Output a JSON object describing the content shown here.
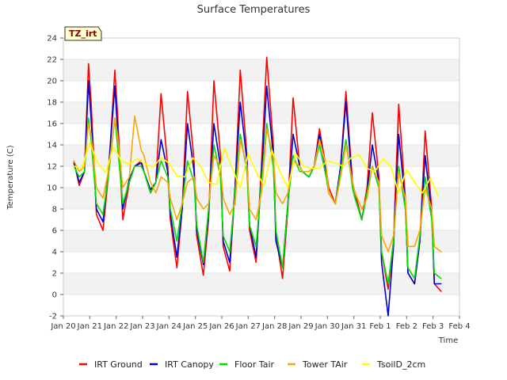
{
  "badge": {
    "label": "TZ_irt"
  },
  "chart_data": {
    "type": "line",
    "title": "Surface Temperatures",
    "xlabel": "Time",
    "ylabel": "Temperature (C)",
    "ylim": [
      -2,
      24
    ],
    "yticks": [
      -2,
      0,
      2,
      4,
      6,
      8,
      10,
      12,
      14,
      16,
      18,
      20,
      22,
      24
    ],
    "xlim": [
      0,
      15
    ],
    "xticks": [
      {
        "value": 0,
        "label": "Jan 20"
      },
      {
        "value": 1,
        "label": "Jan 21"
      },
      {
        "value": 2,
        "label": "Jan 22"
      },
      {
        "value": 3,
        "label": "Jan 23"
      },
      {
        "value": 4,
        "label": "Jan 24"
      },
      {
        "value": 5,
        "label": "Jan 25"
      },
      {
        "value": 6,
        "label": "Jan 26"
      },
      {
        "value": 7,
        "label": "Jan 27"
      },
      {
        "value": 8,
        "label": "Jan 28"
      },
      {
        "value": 9,
        "label": "Jan 29"
      },
      {
        "value": 10,
        "label": "Jan 30"
      },
      {
        "value": 11,
        "label": "Jan 31"
      },
      {
        "value": 12,
        "label": "Feb 1"
      },
      {
        "value": 13,
        "label": "Feb 2"
      },
      {
        "value": 14,
        "label": "Feb 3"
      },
      {
        "value": 15,
        "label": "Feb 4"
      }
    ],
    "grid": "horizontal bands",
    "legend_position": "bottom",
    "series": [
      {
        "name": "IRT Ground",
        "color": "#ff0000",
        "x": [
          0.4,
          0.6,
          0.8,
          0.95,
          1.05,
          1.25,
          1.5,
          1.7,
          1.95,
          2.05,
          2.25,
          2.5,
          2.7,
          2.95,
          3.05,
          3.3,
          3.5,
          3.7,
          3.95,
          4.05,
          4.3,
          4.5,
          4.7,
          4.95,
          5.05,
          5.3,
          5.5,
          5.7,
          5.95,
          6.05,
          6.3,
          6.5,
          6.7,
          6.95,
          7.05,
          7.3,
          7.5,
          7.7,
          7.95,
          8.05,
          8.3,
          8.5,
          8.7,
          8.95,
          9.05,
          9.3,
          9.5,
          9.7,
          9.95,
          10.05,
          10.3,
          10.5,
          10.7,
          10.95,
          11.05,
          11.3,
          11.5,
          11.7,
          11.95,
          12.05,
          12.3,
          12.5,
          12.7,
          12.95,
          13.05,
          13.3,
          13.5,
          13.7,
          13.95,
          14.05,
          14.3
        ],
        "y": [
          12.5,
          10.2,
          11.5,
          21.6,
          18.0,
          7.5,
          6.0,
          11.0,
          21.0,
          17.0,
          7.0,
          10.5,
          12.0,
          12.5,
          11.5,
          9.5,
          10.5,
          18.8,
          12.0,
          7.0,
          2.5,
          8.0,
          19.0,
          12.5,
          5.5,
          1.8,
          7.0,
          20.0,
          13.0,
          4.5,
          2.2,
          10.0,
          21.0,
          13.0,
          6.0,
          3.0,
          12.0,
          22.2,
          14.0,
          5.5,
          1.5,
          8.0,
          18.4,
          12.0,
          11.5,
          11.0,
          12.0,
          15.5,
          11.8,
          10.0,
          8.5,
          12.0,
          19.0,
          10.5,
          9.5,
          7.0,
          10.0,
          17.0,
          11.0,
          4.0,
          0.5,
          5.0,
          17.8,
          9.0,
          2.0,
          1.0,
          5.0,
          15.3,
          8.0,
          1.0,
          0.3
        ]
      },
      {
        "name": "IRT Canopy",
        "color": "#0000cc",
        "x": [
          0.4,
          0.6,
          0.8,
          0.95,
          1.05,
          1.25,
          1.5,
          1.7,
          1.95,
          2.05,
          2.25,
          2.5,
          2.7,
          2.95,
          3.05,
          3.3,
          3.5,
          3.7,
          3.95,
          4.05,
          4.3,
          4.5,
          4.7,
          4.95,
          5.05,
          5.3,
          5.5,
          5.7,
          5.95,
          6.05,
          6.3,
          6.5,
          6.7,
          6.95,
          7.05,
          7.3,
          7.5,
          7.7,
          7.95,
          8.05,
          8.3,
          8.5,
          8.7,
          8.95,
          9.05,
          9.3,
          9.5,
          9.7,
          9.95,
          10.05,
          10.3,
          10.5,
          10.7,
          10.95,
          11.05,
          11.3,
          11.5,
          11.7,
          11.95,
          12.05,
          12.3,
          12.5,
          12.7,
          12.95,
          13.05,
          13.3,
          13.5,
          13.7,
          13.95,
          14.05,
          14.3
        ],
        "y": [
          12.3,
          10.5,
          11.5,
          20.0,
          16.5,
          8.0,
          6.8,
          11.5,
          19.5,
          15.5,
          8.0,
          10.8,
          12.0,
          12.3,
          11.5,
          9.8,
          10.5,
          14.5,
          11.5,
          7.5,
          3.5,
          8.0,
          16.0,
          11.5,
          6.0,
          2.8,
          7.5,
          16.0,
          12.0,
          5.0,
          3.0,
          10.0,
          18.0,
          12.5,
          6.5,
          3.5,
          11.0,
          19.5,
          13.0,
          5.0,
          2.5,
          8.5,
          15.0,
          12.0,
          11.5,
          11.0,
          12.0,
          15.0,
          11.5,
          9.5,
          8.5,
          12.0,
          18.0,
          10.0,
          9.0,
          7.0,
          9.5,
          14.0,
          10.5,
          3.0,
          -2.0,
          4.5,
          15.0,
          8.5,
          2.0,
          1.0,
          5.0,
          13.0,
          7.5,
          1.0,
          1.0
        ]
      },
      {
        "name": "Floor Tair",
        "color": "#00dd00",
        "x": [
          0.4,
          0.6,
          0.8,
          0.95,
          1.05,
          1.25,
          1.5,
          1.7,
          1.95,
          2.05,
          2.25,
          2.5,
          2.7,
          2.95,
          3.05,
          3.3,
          3.5,
          3.7,
          3.95,
          4.05,
          4.3,
          4.5,
          4.7,
          4.95,
          5.05,
          5.3,
          5.5,
          5.7,
          5.95,
          6.05,
          6.3,
          6.5,
          6.7,
          6.95,
          7.05,
          7.3,
          7.5,
          7.7,
          7.95,
          8.05,
          8.3,
          8.5,
          8.7,
          8.95,
          9.05,
          9.3,
          9.5,
          9.7,
          9.95,
          10.05,
          10.3,
          10.5,
          10.7,
          10.95,
          11.05,
          11.3,
          11.5,
          11.7,
          11.95,
          12.05,
          12.3,
          12.5,
          12.7,
          12.95,
          13.05,
          13.3,
          13.5,
          13.7,
          13.95,
          14.05,
          14.3
        ],
        "y": [
          12.0,
          11.0,
          11.5,
          16.5,
          14.5,
          8.5,
          7.5,
          11.0,
          16.5,
          14.0,
          8.5,
          10.5,
          12.0,
          12.0,
          11.5,
          9.5,
          10.5,
          12.5,
          11.0,
          8.0,
          5.0,
          8.5,
          12.5,
          10.5,
          6.5,
          3.0,
          8.0,
          14.0,
          11.0,
          5.5,
          4.0,
          9.5,
          15.0,
          11.5,
          6.5,
          4.5,
          10.5,
          16.0,
          12.0,
          6.0,
          2.5,
          8.5,
          13.0,
          11.5,
          11.5,
          11.0,
          12.0,
          14.0,
          11.0,
          9.5,
          8.5,
          11.5,
          14.5,
          10.0,
          9.0,
          7.0,
          9.5,
          12.0,
          10.0,
          4.0,
          1.0,
          5.0,
          12.0,
          8.0,
          2.5,
          1.5,
          5.5,
          11.0,
          7.0,
          2.0,
          1.5
        ]
      },
      {
        "name": "Tower TAir",
        "color": "#ffa500",
        "x": [
          0.4,
          0.6,
          0.8,
          0.95,
          1.05,
          1.25,
          1.5,
          1.7,
          1.95,
          2.05,
          2.25,
          2.5,
          2.7,
          2.95,
          3.05,
          3.3,
          3.5,
          3.7,
          3.95,
          4.05,
          4.3,
          4.5,
          4.7,
          4.95,
          5.05,
          5.3,
          5.5,
          5.7,
          5.95,
          6.05,
          6.3,
          6.5,
          6.7,
          6.95,
          7.05,
          7.3,
          7.5,
          7.7,
          7.95,
          8.05,
          8.3,
          8.5,
          8.7,
          8.95,
          9.05,
          9.3,
          9.5,
          9.7,
          9.95,
          10.05,
          10.3,
          10.5,
          10.7,
          10.95,
          11.05,
          11.3,
          11.5,
          11.7,
          11.95,
          12.05,
          12.3,
          12.5,
          12.7,
          12.95,
          13.05,
          13.3,
          13.5,
          13.7,
          13.95,
          14.05,
          14.3
        ],
        "y": [
          12.5,
          11.5,
          12.0,
          16.0,
          15.0,
          10.0,
          9.0,
          11.5,
          16.5,
          15.0,
          10.0,
          11.0,
          16.7,
          13.5,
          13.0,
          10.5,
          9.5,
          11.0,
          10.5,
          9.0,
          7.0,
          8.5,
          10.5,
          11.0,
          9.0,
          8.0,
          8.5,
          13.0,
          12.0,
          9.0,
          7.5,
          8.5,
          14.5,
          12.0,
          8.0,
          7.0,
          9.5,
          15.5,
          13.0,
          9.5,
          8.5,
          9.5,
          12.5,
          12.0,
          11.5,
          11.5,
          12.0,
          14.5,
          12.0,
          9.5,
          8.5,
          11.0,
          14.0,
          10.5,
          9.5,
          8.0,
          9.0,
          12.0,
          10.5,
          5.5,
          4.0,
          5.5,
          11.5,
          9.0,
          4.5,
          4.5,
          6.0,
          10.0,
          8.0,
          4.5,
          4.0
        ]
      },
      {
        "name": "TsoilD_2cm",
        "color": "#ffff00",
        "x": [
          0.4,
          0.7,
          1.0,
          1.3,
          1.6,
          1.9,
          2.2,
          2.5,
          2.8,
          3.1,
          3.4,
          3.7,
          4.0,
          4.3,
          4.6,
          4.9,
          5.2,
          5.5,
          5.8,
          6.1,
          6.4,
          6.7,
          7.0,
          7.3,
          7.6,
          7.9,
          8.2,
          8.5,
          8.8,
          9.1,
          9.4,
          9.7,
          10.0,
          10.3,
          10.6,
          10.9,
          11.2,
          11.5,
          11.8,
          12.1,
          12.4,
          12.7,
          13.0,
          13.3,
          13.6,
          13.9,
          14.2
        ],
        "y": [
          12.0,
          11.8,
          14.2,
          12.3,
          11.4,
          13.8,
          12.5,
          12.2,
          12.7,
          12.2,
          11.9,
          12.8,
          12.3,
          11.1,
          11.0,
          12.8,
          12.0,
          10.5,
          10.3,
          13.7,
          11.8,
          10.0,
          13.2,
          11.5,
          10.2,
          13.5,
          11.5,
          10.0,
          13.2,
          12.0,
          11.8,
          11.8,
          12.5,
          12.3,
          12.0,
          12.8,
          13.1,
          11.8,
          11.5,
          12.7,
          12.0,
          9.5,
          11.7,
          10.5,
          9.5,
          10.9,
          9.2
        ]
      }
    ]
  }
}
